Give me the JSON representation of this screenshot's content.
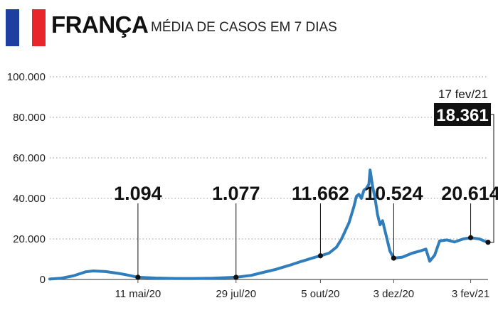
{
  "header": {
    "country": "FRANÇA",
    "subtitle": "MÉDIA DE CASOS EM 7 DIAS",
    "flag_colors": [
      "#1f3fa0",
      "#ffffff",
      "#e8252b"
    ]
  },
  "chart_data": {
    "type": "line",
    "title": "MÉDIA DE CASOS EM 7 DIAS",
    "xlabel": "",
    "ylabel": "",
    "ylim": [
      0,
      100000
    ],
    "xlim": [
      "2020-03-01",
      "2021-02-17"
    ],
    "yticks": [
      0,
      20000,
      40000,
      60000,
      80000,
      100000
    ],
    "ytick_labels": [
      "0",
      "20.000",
      "40.000",
      "60.000",
      "80.000",
      "100.000"
    ],
    "xticks": [
      "2020-05-11",
      "2020-07-29",
      "2020-10-05",
      "2020-12-03",
      "2021-02-03"
    ],
    "xtick_labels": [
      "11 mai/20",
      "29 jul/20",
      "5 out/20",
      "3 dez/20",
      "3 fev/21"
    ],
    "grid": true,
    "line_color": "#2f7dbb",
    "series": [
      {
        "name": "",
        "points": [
          [
            "2020-03-01",
            200
          ],
          [
            "2020-03-10",
            600
          ],
          [
            "2020-03-20",
            1800
          ],
          [
            "2020-03-30",
            3800
          ],
          [
            "2020-04-05",
            4200
          ],
          [
            "2020-04-15",
            3900
          ],
          [
            "2020-04-25",
            3000
          ],
          [
            "2020-05-01",
            2400
          ],
          [
            "2020-05-11",
            1094
          ],
          [
            "2020-05-25",
            700
          ],
          [
            "2020-06-10",
            500
          ],
          [
            "2020-06-25",
            500
          ],
          [
            "2020-07-10",
            600
          ],
          [
            "2020-07-29",
            1077
          ],
          [
            "2020-08-10",
            2000
          ],
          [
            "2020-08-20",
            3500
          ],
          [
            "2020-08-30",
            5000
          ],
          [
            "2020-09-10",
            7000
          ],
          [
            "2020-09-20",
            9000
          ],
          [
            "2020-10-01",
            11000
          ],
          [
            "2020-10-05",
            11662
          ],
          [
            "2020-10-12",
            13000
          ],
          [
            "2020-10-18",
            16000
          ],
          [
            "2020-10-22",
            20000
          ],
          [
            "2020-10-28",
            28000
          ],
          [
            "2020-11-01",
            36000
          ],
          [
            "2020-11-03",
            41000
          ],
          [
            "2020-11-05",
            42000
          ],
          [
            "2020-11-07",
            40000
          ],
          [
            "2020-11-09",
            44000
          ],
          [
            "2020-11-11",
            45000
          ],
          [
            "2020-11-13",
            47000
          ],
          [
            "2020-11-14",
            54000
          ],
          [
            "2020-11-15",
            50000
          ],
          [
            "2020-11-16",
            46000
          ],
          [
            "2020-11-18",
            40000
          ],
          [
            "2020-11-20",
            32000
          ],
          [
            "2020-11-22",
            27000
          ],
          [
            "2020-11-24",
            29000
          ],
          [
            "2020-11-26",
            24000
          ],
          [
            "2020-11-30",
            14000
          ],
          [
            "2020-12-03",
            10524
          ],
          [
            "2020-12-10",
            11000
          ],
          [
            "2020-12-18",
            13000
          ],
          [
            "2020-12-24",
            14000
          ],
          [
            "2020-12-29",
            15000
          ],
          [
            "2021-01-01",
            9000
          ],
          [
            "2021-01-05",
            12000
          ],
          [
            "2021-01-09",
            19000
          ],
          [
            "2021-01-15",
            19500
          ],
          [
            "2021-01-21",
            18500
          ],
          [
            "2021-01-28",
            20000
          ],
          [
            "2021-02-03",
            20614
          ],
          [
            "2021-02-10",
            20000
          ],
          [
            "2021-02-14",
            19000
          ],
          [
            "2021-02-17",
            18361
          ]
        ]
      }
    ],
    "annotations": [
      {
        "date": "2020-05-11",
        "value": 1094,
        "label": "1.094"
      },
      {
        "date": "2020-07-29",
        "value": 1077,
        "label": "1.077"
      },
      {
        "date": "2020-10-05",
        "value": 11662,
        "label": "11.662"
      },
      {
        "date": "2020-12-03",
        "value": 10524,
        "label": "10.524"
      },
      {
        "date": "2021-02-03",
        "value": 20614,
        "label": "20.614"
      }
    ],
    "last_value": {
      "date": "2021-02-17",
      "value": 18361,
      "date_label": "17 fev/21",
      "label": "18.361"
    }
  }
}
